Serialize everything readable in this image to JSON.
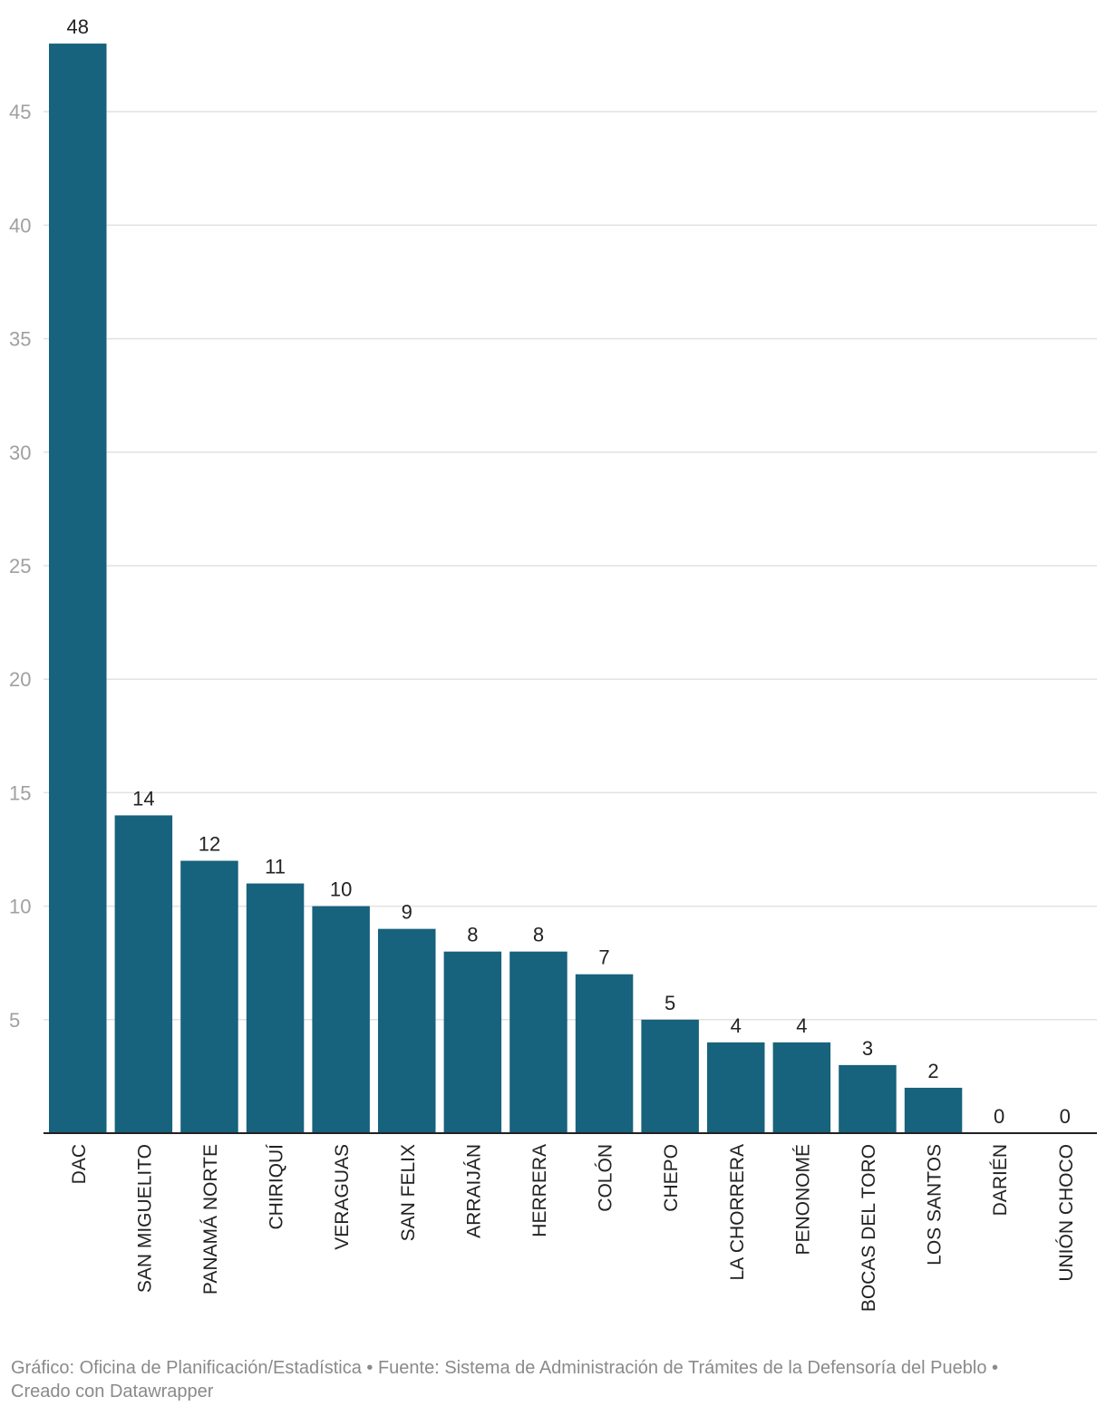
{
  "chart_data": {
    "type": "bar",
    "title": "",
    "xlabel": "",
    "ylabel": "",
    "ylim": [
      0,
      48
    ],
    "yticks": [
      5,
      10,
      15,
      20,
      25,
      30,
      35,
      40,
      45
    ],
    "grid": true,
    "categories": [
      "DAC",
      "SAN MIGUELITO",
      "PANAMÁ NORTE",
      "CHIRIQUÍ",
      "VERAGUAS",
      "SAN FELIX",
      "ARRAIJÁN",
      "HERRERA",
      "COLÓN",
      "CHEPO",
      "LA CHORRERA",
      "PENONOMÉ",
      "BOCAS DEL TORO",
      "LOS SANTOS",
      "DARIÉN",
      "UNIÓN CHOCO"
    ],
    "values": [
      48,
      14,
      12,
      11,
      10,
      9,
      8,
      8,
      7,
      5,
      4,
      4,
      3,
      2,
      0,
      0
    ],
    "bar_color": "#17627d",
    "grid_color": "#e2e2e2",
    "tick_color": "#a0a0a0",
    "label_color": "#222222"
  },
  "footer": {
    "credit_line1": "Gráfico: Oficina de Planificación/Estadística • Fuente: Sistema de Administración de Trámites de la Defensoría del Pueblo •",
    "credit_line2": "Creado con Datawrapper"
  }
}
